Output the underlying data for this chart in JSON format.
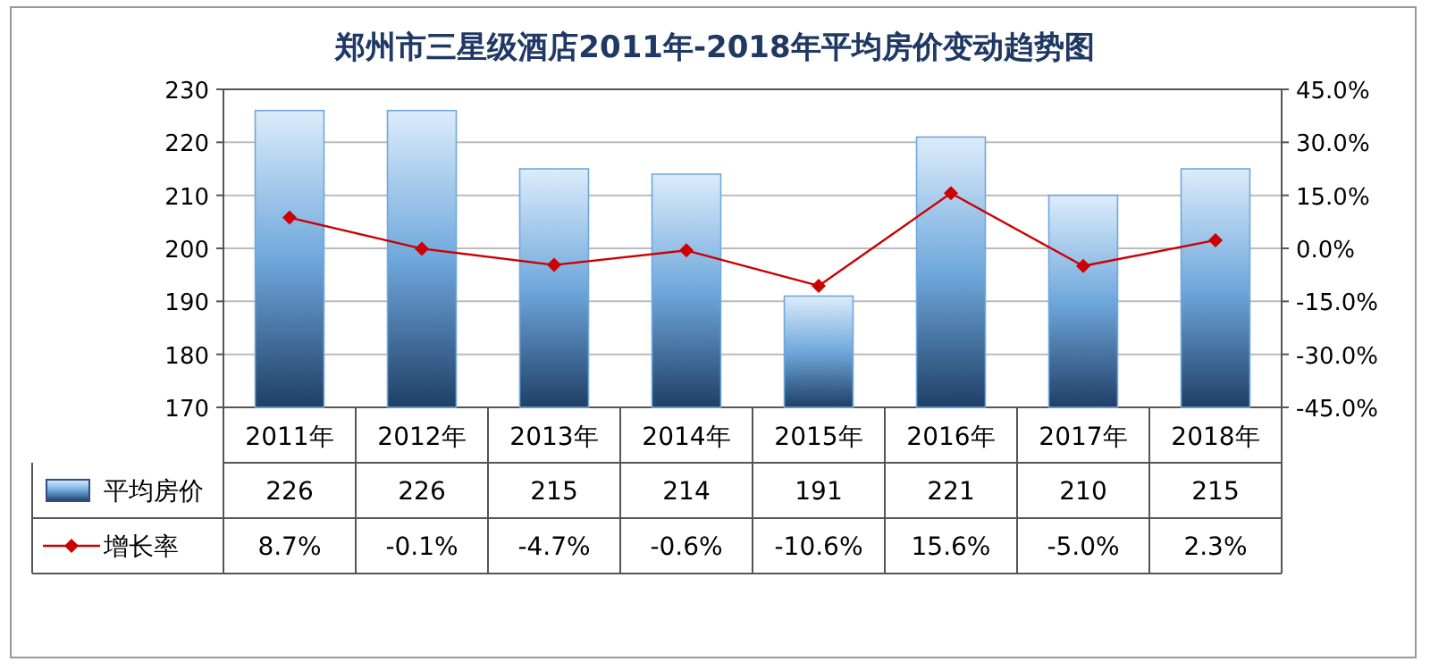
{
  "chart_data": {
    "type": "bar",
    "title": "郑州市三星级酒店2011年-2018年平均房价变动趋势图",
    "categories": [
      "2011年",
      "2012年",
      "2013年",
      "2014年",
      "2015年",
      "2016年",
      "2017年",
      "2018年"
    ],
    "series": [
      {
        "name": "平均房价",
        "color": "#6fa8dc",
        "values": [
          226,
          226,
          215,
          214,
          191,
          221,
          210,
          215
        ],
        "value_labels": [
          "226",
          "226",
          "215",
          "214",
          "191",
          "221",
          "210",
          "215"
        ]
      },
      {
        "name": "增长率",
        "type": "line",
        "axis": "y2",
        "color": "#cc0000",
        "marker": "diamond",
        "values": [
          8.7,
          -0.1,
          -4.7,
          -0.6,
          -10.6,
          15.6,
          -5.0,
          2.3
        ],
        "value_labels": [
          "8.7%",
          "-0.1%",
          "-4.7%",
          "-0.6%",
          "-10.6%",
          "15.6%",
          "-5.0%",
          "2.3%"
        ]
      }
    ],
    "ylim": [
      170,
      230
    ],
    "yticks": [
      170,
      180,
      190,
      200,
      210,
      220,
      230
    ],
    "y2lim": [
      -45,
      45
    ],
    "y2ticks": [
      {
        "value": 45,
        "label": "45.0%"
      },
      {
        "value": 30,
        "label": "30.0%"
      },
      {
        "value": 15,
        "label": "15.0%"
      },
      {
        "value": 0,
        "label": "0.0%"
      },
      {
        "value": -15,
        "label": "-15.0%"
      },
      {
        "value": -30,
        "label": "-30.0%"
      },
      {
        "value": -45,
        "label": "-45.0%"
      }
    ],
    "grid": "y",
    "legend": "bottom"
  }
}
